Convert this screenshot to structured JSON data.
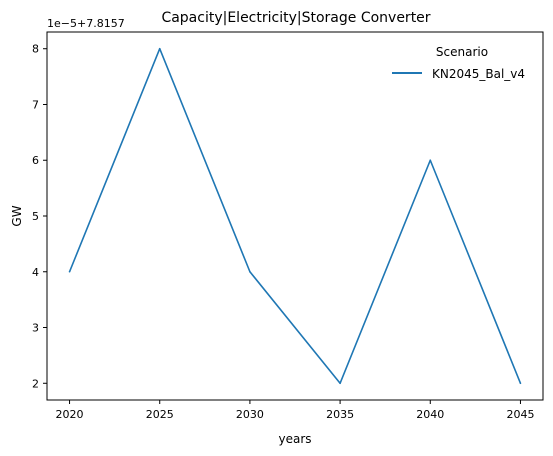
{
  "chart_data": {
    "type": "line",
    "title": "Capacity|Electricity|Storage Converter",
    "xlabel": "years",
    "ylabel": "GW",
    "offset_text": "1e−5+7.8157",
    "x": [
      2020,
      2025,
      2030,
      2035,
      2040,
      2045
    ],
    "x_ticks": [
      "2020",
      "2025",
      "2030",
      "2035",
      "2040",
      "2045"
    ],
    "y_ticks": [
      "2",
      "3",
      "4",
      "5",
      "6",
      "7",
      "8"
    ],
    "ylim": [
      1.7,
      8.3
    ],
    "xlim": [
      2018.75,
      2046.25
    ],
    "grid": false,
    "legend": {
      "title": "Scenario",
      "placement": "top-right"
    },
    "series": [
      {
        "name": "KN2045_Bal_v4",
        "color": "#1f77b4",
        "values": [
          4,
          8,
          4,
          2,
          6,
          2
        ]
      }
    ]
  }
}
